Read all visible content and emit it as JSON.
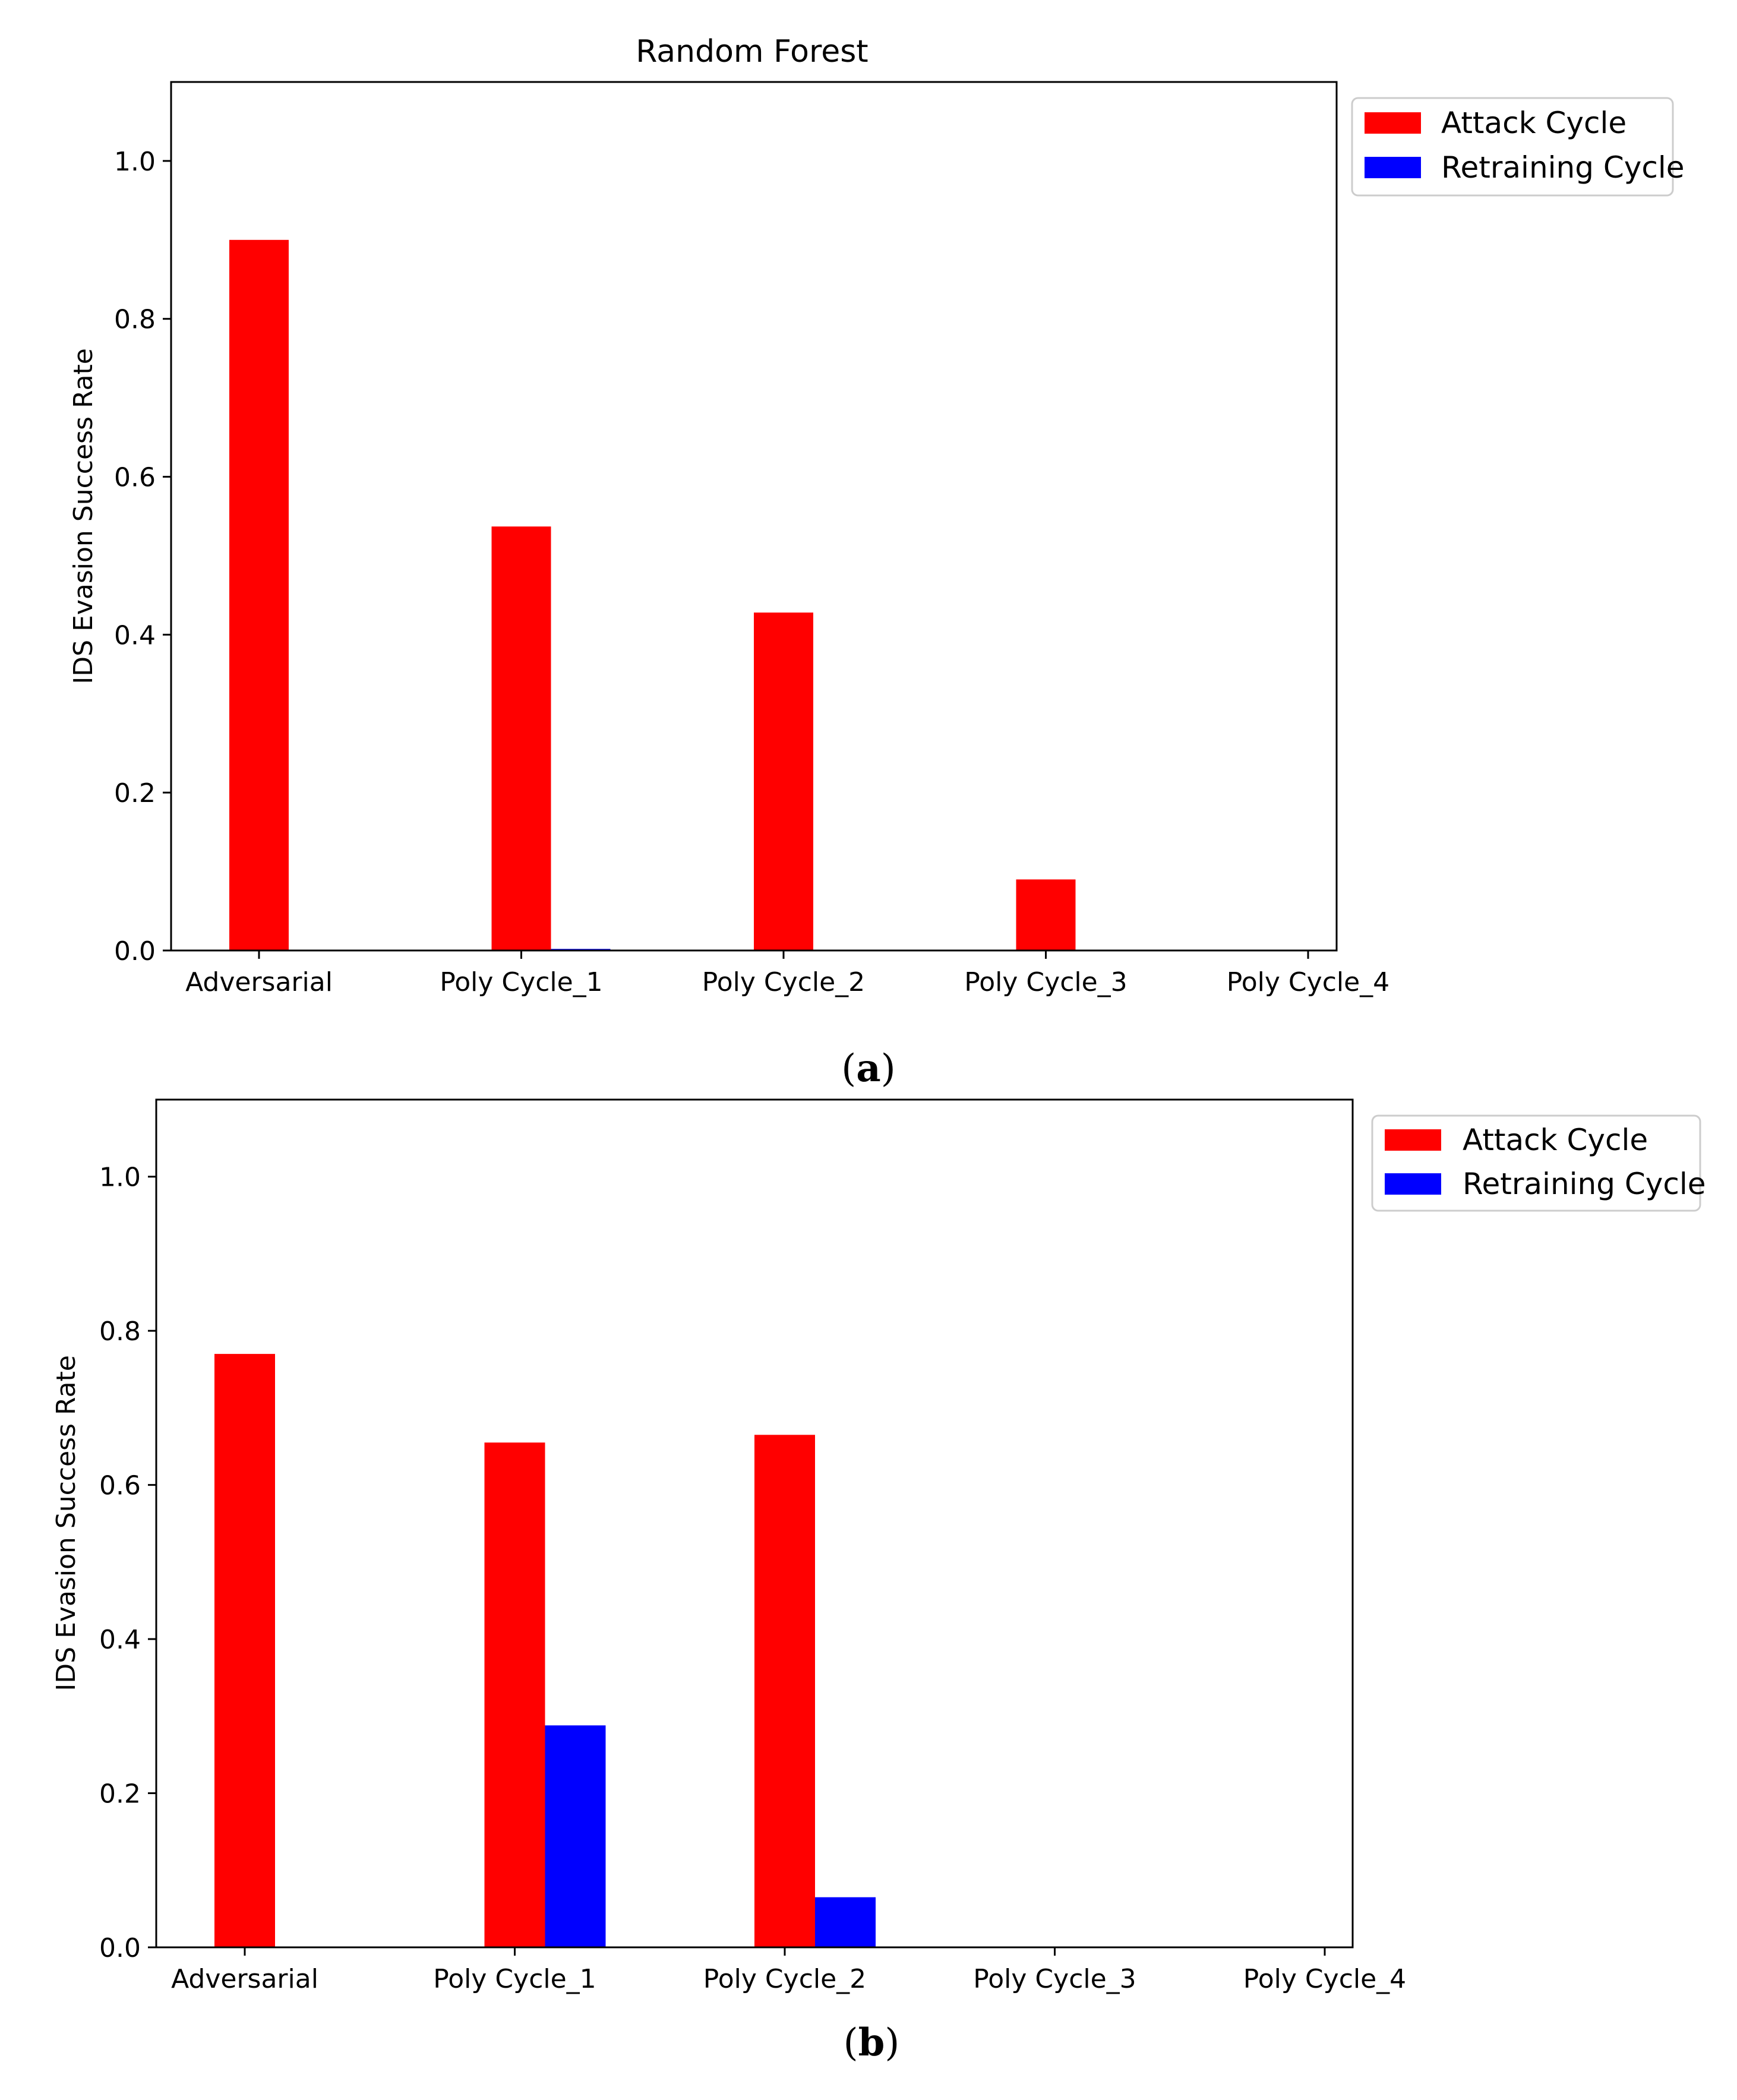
{
  "colors": {
    "attack": "#ff0000",
    "retraining": "#0000ff",
    "axis": "#000000",
    "legend_border": "#cccccc"
  },
  "chart_data": [
    {
      "type": "bar",
      "title": "Random Forest",
      "caption_letter": "a",
      "ylabel": "IDS Evasion Success Rate",
      "xlabel": "",
      "ylim": [
        0,
        1.1
      ],
      "yticks": [
        "0.0",
        "0.2",
        "0.4",
        "0.6",
        "0.8",
        "1.0"
      ],
      "categories": [
        "Adversarial",
        "Poly Cycle_1",
        "Poly Cycle_2",
        "Poly Cycle_3",
        "Poly Cycle_4"
      ],
      "legend_position": "outside top-right",
      "series": [
        {
          "name": "Attack Cycle",
          "color_key": "attack",
          "values": [
            0.9,
            0.537,
            0.428,
            0.09,
            0.0
          ]
        },
        {
          "name": "Retraining Cycle",
          "color_key": "retraining",
          "values": [
            0.0,
            0.002,
            0.0,
            0.0,
            0.0
          ]
        }
      ]
    },
    {
      "type": "bar",
      "title": "",
      "caption_letter": "b",
      "ylabel": "IDS Evasion Success Rate",
      "xlabel": "",
      "ylim": [
        0,
        1.1
      ],
      "yticks": [
        "0.0",
        "0.2",
        "0.4",
        "0.6",
        "0.8",
        "1.0"
      ],
      "categories": [
        "Adversarial",
        "Poly Cycle_1",
        "Poly Cycle_2",
        "Poly Cycle_3",
        "Poly Cycle_4"
      ],
      "legend_position": "outside top-right",
      "series": [
        {
          "name": "Attack Cycle",
          "color_key": "attack",
          "values": [
            0.77,
            0.655,
            0.665,
            0.0,
            0.0
          ]
        },
        {
          "name": "Retraining Cycle",
          "color_key": "retraining",
          "values": [
            0.0,
            0.288,
            0.065,
            0.0,
            0.0
          ]
        }
      ]
    }
  ]
}
